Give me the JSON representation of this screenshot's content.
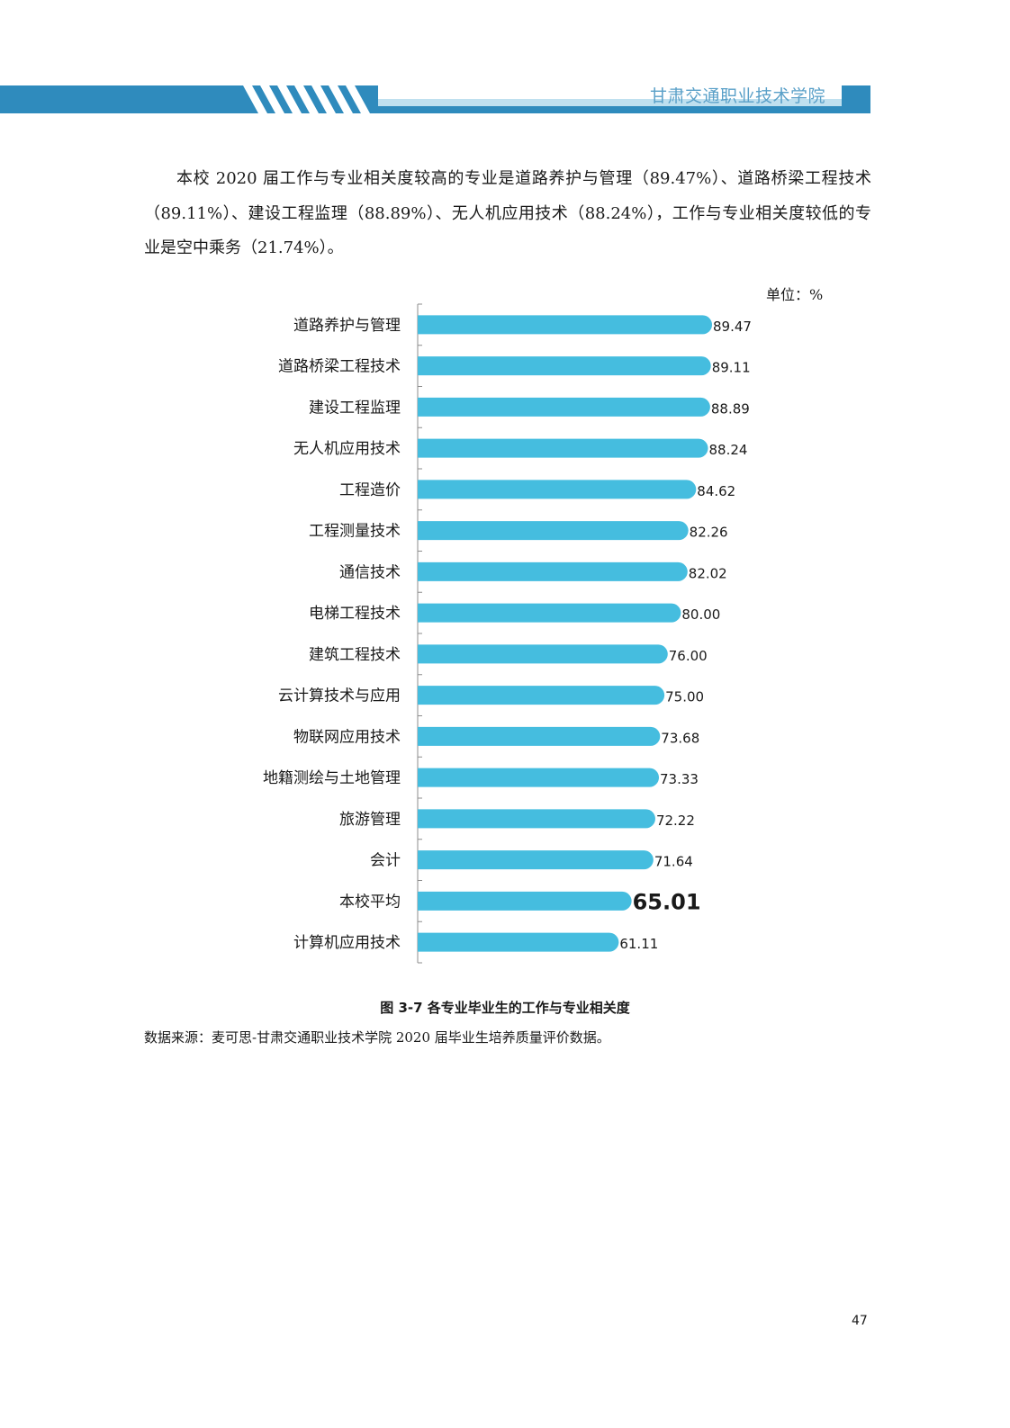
{
  "header": {
    "title": "甘肃交通职业技术学院",
    "colors": {
      "band": "#2f8bbd",
      "accent": "#bfe0ef",
      "stripe": "#ffffff"
    }
  },
  "paragraph": "本校 2020 届工作与专业相关度较高的专业是道路养护与管理（89.47%）、道路桥梁工程技术（89.11%）、建设工程监理（88.89%）、无人机应用技术（88.24%），工作与专业相关度较低的专业是空中乘务（21.74%）。",
  "unit_label": "单位：%",
  "figure_caption": "图 3-7  各专业毕业生的工作与专业相关度",
  "source_note": "数据来源：麦可思-甘肃交通职业技术学院 2020 届毕业生培养质量评价数据。",
  "page_number": "47",
  "chart_data": {
    "type": "bar",
    "orientation": "horizontal",
    "bar_color": "#45bddf",
    "categories": [
      "道路养护与管理",
      "道路桥梁工程技术",
      "建设工程监理",
      "无人机应用技术",
      "工程造价",
      "工程测量技术",
      "通信技术",
      "电梯工程技术",
      "建筑工程技术",
      "云计算技术与应用",
      "物联网应用技术",
      "地籍测绘与土地管理",
      "旅游管理",
      "会计",
      "本校平均",
      "计算机应用技术"
    ],
    "values": [
      89.47,
      89.11,
      88.89,
      88.24,
      84.62,
      82.26,
      82.02,
      80.0,
      76.0,
      75.0,
      73.68,
      73.33,
      72.22,
      71.64,
      65.01,
      61.11
    ],
    "labels": [
      "89.47",
      "89.11",
      "88.89",
      "88.24",
      "84.62",
      "82.26",
      "82.02",
      "80.00",
      "76.00",
      "75.00",
      "73.68",
      "73.33",
      "72.22",
      "71.64",
      "65.01",
      "61.11"
    ],
    "highlight": "本校平均",
    "xlim": [
      0,
      100
    ],
    "grid": false,
    "legend": "none"
  }
}
